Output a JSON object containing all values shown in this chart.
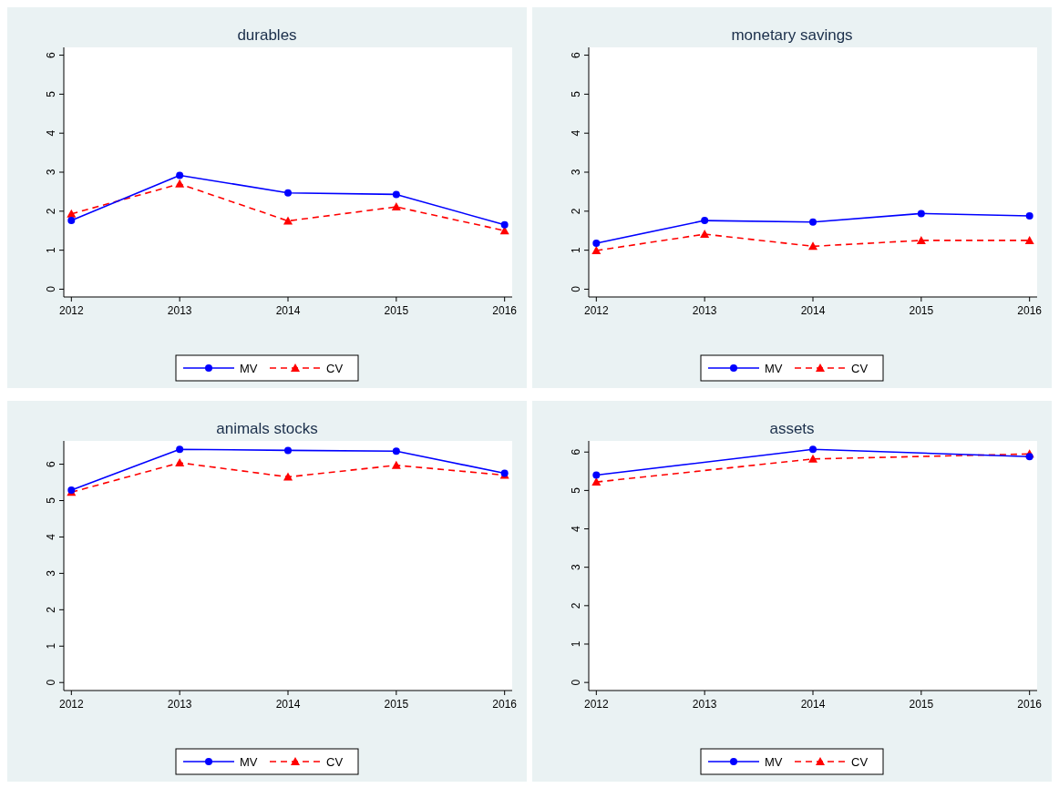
{
  "chart_data": [
    {
      "type": "line",
      "title": "durables",
      "xlim": [
        2011.93,
        2016.07
      ],
      "xticks": [
        2012,
        2013,
        2014,
        2015,
        2016
      ],
      "ylim": [
        -0.2,
        6.2
      ],
      "yticks": [
        0,
        1,
        2,
        3,
        4,
        5,
        6
      ],
      "legend": "bottom",
      "grid": false,
      "series": [
        {
          "name": "MV",
          "color": "#0000ff",
          "marker": "circle",
          "line_style": "solid",
          "x": [
            2012,
            2013,
            2014,
            2015,
            2016
          ],
          "values": [
            1.76,
            2.92,
            2.47,
            2.43,
            1.65
          ]
        },
        {
          "name": "CV",
          "color": "#ff0000",
          "marker": "triangle",
          "line_style": "dashed",
          "x": [
            2012,
            2013,
            2014,
            2015,
            2016
          ],
          "values": [
            1.93,
            2.7,
            1.75,
            2.11,
            1.5
          ]
        }
      ]
    },
    {
      "type": "line",
      "title": "monetary savings",
      "xlim": [
        2011.93,
        2016.07
      ],
      "xticks": [
        2012,
        2013,
        2014,
        2015,
        2016
      ],
      "ylim": [
        -0.2,
        6.2
      ],
      "yticks": [
        0,
        1,
        2,
        3,
        4,
        5,
        6
      ],
      "legend": "bottom",
      "grid": false,
      "series": [
        {
          "name": "MV",
          "color": "#0000ff",
          "marker": "circle",
          "line_style": "solid",
          "x": [
            2012,
            2013,
            2014,
            2015,
            2016
          ],
          "values": [
            1.18,
            1.76,
            1.72,
            1.94,
            1.88
          ]
        },
        {
          "name": "CV",
          "color": "#ff0000",
          "marker": "triangle",
          "line_style": "dashed",
          "x": [
            2012,
            2013,
            2014,
            2015,
            2016
          ],
          "values": [
            0.99,
            1.41,
            1.1,
            1.25,
            1.25
          ]
        }
      ]
    },
    {
      "type": "line",
      "title": "animals stocks",
      "xlim": [
        2011.93,
        2016.07
      ],
      "xticks": [
        2012,
        2013,
        2014,
        2015,
        2016
      ],
      "ylim": [
        -0.22,
        6.64
      ],
      "yticks": [
        0,
        1,
        2,
        3,
        4,
        5,
        6
      ],
      "legend": "bottom",
      "grid": false,
      "series": [
        {
          "name": "MV",
          "color": "#0000ff",
          "marker": "circle",
          "line_style": "solid",
          "x": [
            2012,
            2013,
            2014,
            2015,
            2016
          ],
          "values": [
            5.29,
            6.41,
            6.38,
            6.36,
            5.75
          ]
        },
        {
          "name": "CV",
          "color": "#ff0000",
          "marker": "triangle",
          "line_style": "dashed",
          "x": [
            2012,
            2013,
            2014,
            2015,
            2016
          ],
          "values": [
            5.23,
            6.04,
            5.65,
            5.97,
            5.7
          ]
        }
      ]
    },
    {
      "type": "line",
      "title": "assets",
      "xlim": [
        2011.93,
        2016.07
      ],
      "xticks": [
        2012,
        2013,
        2014,
        2015,
        2016
      ],
      "ylim": [
        -0.21,
        6.29
      ],
      "yticks": [
        0,
        1,
        2,
        3,
        4,
        5,
        6
      ],
      "legend": "bottom",
      "grid": false,
      "series": [
        {
          "name": "MV",
          "color": "#0000ff",
          "marker": "circle",
          "line_style": "solid",
          "x": [
            2012,
            2014,
            2016
          ],
          "values": [
            5.4,
            6.07,
            5.88
          ]
        },
        {
          "name": "CV",
          "color": "#ff0000",
          "marker": "triangle",
          "line_style": "dashed",
          "x": [
            2012,
            2014,
            2016
          ],
          "values": [
            5.22,
            5.82,
            5.95
          ]
        }
      ]
    }
  ]
}
